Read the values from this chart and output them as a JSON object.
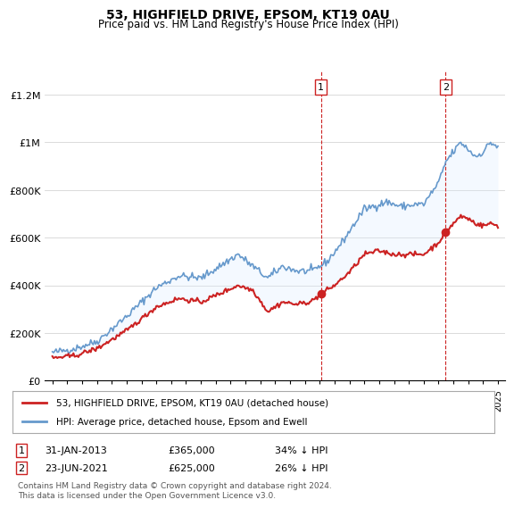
{
  "title": "53, HIGHFIELD DRIVE, EPSOM, KT19 0AU",
  "subtitle": "Price paid vs. HM Land Registry's House Price Index (HPI)",
  "sale1_date": "31-JAN-2013",
  "sale1_price": 365000,
  "sale1_label": "34% ↓ HPI",
  "sale1_x": 2013.08,
  "sale2_date": "23-JUN-2021",
  "sale2_price": 625000,
  "sale2_label": "26% ↓ HPI",
  "sale2_x": 2021.48,
  "legend_line1": "53, HIGHFIELD DRIVE, EPSOM, KT19 0AU (detached house)",
  "legend_line2": "HPI: Average price, detached house, Epsom and Ewell",
  "footnote": "Contains HM Land Registry data © Crown copyright and database right 2024.\nThis data is licensed under the Open Government Licence v3.0.",
  "hpi_color": "#6699cc",
  "price_color": "#cc2222",
  "shade_color": "#ddeeff",
  "vline_color": "#cc2222",
  "ylim_max": 1300000,
  "ylim_min": 0,
  "xlabel_start": 1995,
  "xlabel_end": 2025
}
